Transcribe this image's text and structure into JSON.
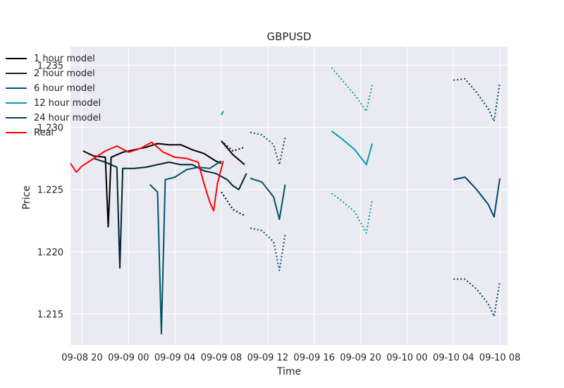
{
  "chart_data": {
    "type": "line",
    "title": "GBPUSD",
    "xlabel": "Time",
    "ylabel": "Price",
    "x_ticks": [
      "09-08 20",
      "09-09 00",
      "09-09 04",
      "09-09 08",
      "09-09 12",
      "09-09 16",
      "09-09 20",
      "09-10 00",
      "09-10 04",
      "09-10 08"
    ],
    "x_range": [
      "09-08 19:00",
      "09-10 08:40"
    ],
    "y_ticks": [
      "1.215",
      "1.220",
      "1.225",
      "1.230",
      "1.235"
    ],
    "ylim": [
      1.2125,
      1.2365
    ],
    "grid": true,
    "legend_position": "upper-left",
    "series": [
      {
        "name": "1 hour model",
        "color": "#000000",
        "history": [
          [
            "09-08 20:05",
            1.2281
          ],
          [
            "09-08 21:00",
            1.2277
          ],
          [
            "09-08 22:00",
            1.2276
          ],
          [
            "09-08 22:15",
            1.222
          ],
          [
            "09-08 22:30",
            1.2276
          ],
          [
            "09-08 23:30",
            1.228
          ],
          [
            "09-09 00:30",
            1.2282
          ],
          [
            "09-09 01:30",
            1.2284
          ],
          [
            "09-09 02:30",
            1.2287
          ],
          [
            "09-09 03:30",
            1.2286
          ],
          [
            "09-09 04:30",
            1.2286
          ],
          [
            "09-09 05:30",
            1.2282
          ],
          [
            "09-09 06:30",
            1.2279
          ],
          [
            "09-09 07:30",
            1.2273
          ],
          [
            "09-09 08:00",
            1.2271
          ]
        ],
        "forecast": [
          [
            "09-09 08:00",
            1.2289
          ],
          [
            "09-09 09:00",
            1.2278
          ],
          [
            "09-09 10:00",
            1.227
          ]
        ],
        "forecast_upper": [
          [
            "09-09 08:00",
            1.2289
          ],
          [
            "09-09 09:00",
            1.2281
          ],
          [
            "09-09 10:00",
            1.2284
          ]
        ],
        "forecast_lower": [
          [
            "09-09 08:00",
            1.2248
          ],
          [
            "09-09 09:00",
            1.2234
          ],
          [
            "09-09 10:00",
            1.2229
          ]
        ]
      },
      {
        "name": "2 hour model",
        "color": "#00252c",
        "history": [
          [
            "09-08 21:00",
            1.2275
          ],
          [
            "09-08 22:00",
            1.2272
          ],
          [
            "09-08 23:00",
            1.2268
          ],
          [
            "09-08 23:15",
            1.2187
          ],
          [
            "09-08 23:30",
            1.2267
          ],
          [
            "09-09 00:30",
            1.2267
          ],
          [
            "09-09 01:30",
            1.2268
          ],
          [
            "09-09 02:30",
            1.227
          ],
          [
            "09-09 03:30",
            1.2272
          ],
          [
            "09-09 04:30",
            1.227
          ],
          [
            "09-09 05:30",
            1.227
          ],
          [
            "09-09 06:30",
            1.2265
          ],
          [
            "09-09 07:30",
            1.2263
          ],
          [
            "09-09 08:30",
            1.2258
          ],
          [
            "09-09 09:00",
            1.2253
          ],
          [
            "09-09 09:30",
            1.225
          ],
          [
            "09-09 10:10",
            1.2263
          ]
        ],
        "forecast": [],
        "forecast_upper": [],
        "forecast_lower": []
      },
      {
        "name": "6 hour model",
        "color": "#005666",
        "history": [
          [
            "09-09 01:50",
            1.2254
          ],
          [
            "09-09 02:30",
            1.2248
          ],
          [
            "09-09 02:50",
            1.2134
          ],
          [
            "09-09 03:10",
            1.2258
          ],
          [
            "09-09 04:00",
            1.226
          ],
          [
            "09-09 05:00",
            1.2266
          ],
          [
            "09-09 06:00",
            1.2268
          ],
          [
            "09-09 07:00",
            1.2267
          ],
          [
            "09-09 08:00",
            1.2273
          ]
        ],
        "forecast": [
          [
            "09-09 10:30",
            1.2259
          ],
          [
            "09-09 11:30",
            1.2256
          ],
          [
            "09-09 12:30",
            1.2244
          ],
          [
            "09-09 13:00",
            1.2226
          ],
          [
            "09-09 13:30",
            1.2254
          ]
        ],
        "forecast_upper": [
          [
            "09-09 10:30",
            1.2296
          ],
          [
            "09-09 11:30",
            1.2294
          ],
          [
            "09-09 12:30",
            1.2286
          ],
          [
            "09-09 13:00",
            1.227
          ],
          [
            "09-09 13:30",
            1.2292
          ]
        ],
        "forecast_lower": [
          [
            "09-09 10:30",
            1.2219
          ],
          [
            "09-09 11:30",
            1.2217
          ],
          [
            "09-09 12:30",
            1.2208
          ],
          [
            "09-09 13:00",
            1.2185
          ],
          [
            "09-09 13:30",
            1.2214
          ]
        ]
      },
      {
        "name": "12 hour model",
        "color": "#00a0b0",
        "history": [
          [
            "09-09 08:00",
            1.231
          ],
          [
            "09-09 08:10",
            1.2313
          ]
        ],
        "forecast": [
          [
            "09-09 17:30",
            1.2297
          ],
          [
            "09-09 18:30",
            1.229
          ],
          [
            "09-09 19:30",
            1.2282
          ],
          [
            "09-09 20:30",
            1.227
          ],
          [
            "09-09 21:00",
            1.2287
          ]
        ],
        "forecast_upper": [
          [
            "09-09 17:30",
            1.2348
          ],
          [
            "09-09 18:30",
            1.2337
          ],
          [
            "09-09 19:30",
            1.2326
          ],
          [
            "09-09 20:30",
            1.2313
          ],
          [
            "09-09 21:00",
            1.2334
          ]
        ],
        "forecast_lower": [
          [
            "09-09 17:30",
            1.2247
          ],
          [
            "09-09 18:30",
            1.224
          ],
          [
            "09-09 19:30",
            1.2232
          ],
          [
            "09-09 20:30",
            1.2215
          ],
          [
            "09-09 21:00",
            1.2242
          ]
        ]
      },
      {
        "name": "24 hour model",
        "color": "#00456b",
        "history": [],
        "forecast": [
          [
            "09-10 04:00",
            1.2258
          ],
          [
            "09-10 05:00",
            1.226
          ],
          [
            "09-10 06:00",
            1.225
          ],
          [
            "09-10 07:00",
            1.2238
          ],
          [
            "09-10 07:30",
            1.2228
          ],
          [
            "09-10 08:00",
            1.2259
          ]
        ],
        "forecast_upper": [
          [
            "09-10 04:00",
            1.2338
          ],
          [
            "09-10 05:00",
            1.2339
          ],
          [
            "09-10 06:00",
            1.2328
          ],
          [
            "09-10 07:00",
            1.2315
          ],
          [
            "09-10 07:30",
            1.2305
          ],
          [
            "09-10 08:00",
            1.2336
          ]
        ],
        "forecast_lower": [
          [
            "09-10 04:00",
            1.2178
          ],
          [
            "09-10 05:00",
            1.2178
          ],
          [
            "09-10 06:00",
            1.217
          ],
          [
            "09-10 07:00",
            1.2158
          ],
          [
            "09-10 07:30",
            1.2148
          ],
          [
            "09-10 08:00",
            1.2176
          ]
        ]
      },
      {
        "name": "Real",
        "color": "#ff0000",
        "history": [
          [
            "09-08 19:00",
            1.2271
          ],
          [
            "09-08 19:30",
            1.2264
          ],
          [
            "09-08 20:00",
            1.2269
          ],
          [
            "09-08 21:00",
            1.2275
          ],
          [
            "09-08 22:00",
            1.2281
          ],
          [
            "09-08 23:00",
            1.2285
          ],
          [
            "09-09 00:00",
            1.228
          ],
          [
            "09-09 01:00",
            1.2283
          ],
          [
            "09-09 02:00",
            1.2288
          ],
          [
            "09-09 03:00",
            1.228
          ],
          [
            "09-09 04:00",
            1.2276
          ],
          [
            "09-09 05:00",
            1.2275
          ],
          [
            "09-09 06:00",
            1.2272
          ],
          [
            "09-09 06:30",
            1.2255
          ],
          [
            "09-09 07:00",
            1.224
          ],
          [
            "09-09 07:20",
            1.2233
          ],
          [
            "09-09 07:40",
            1.2255
          ],
          [
            "09-09 08:10",
            1.2273
          ]
        ]
      }
    ]
  }
}
